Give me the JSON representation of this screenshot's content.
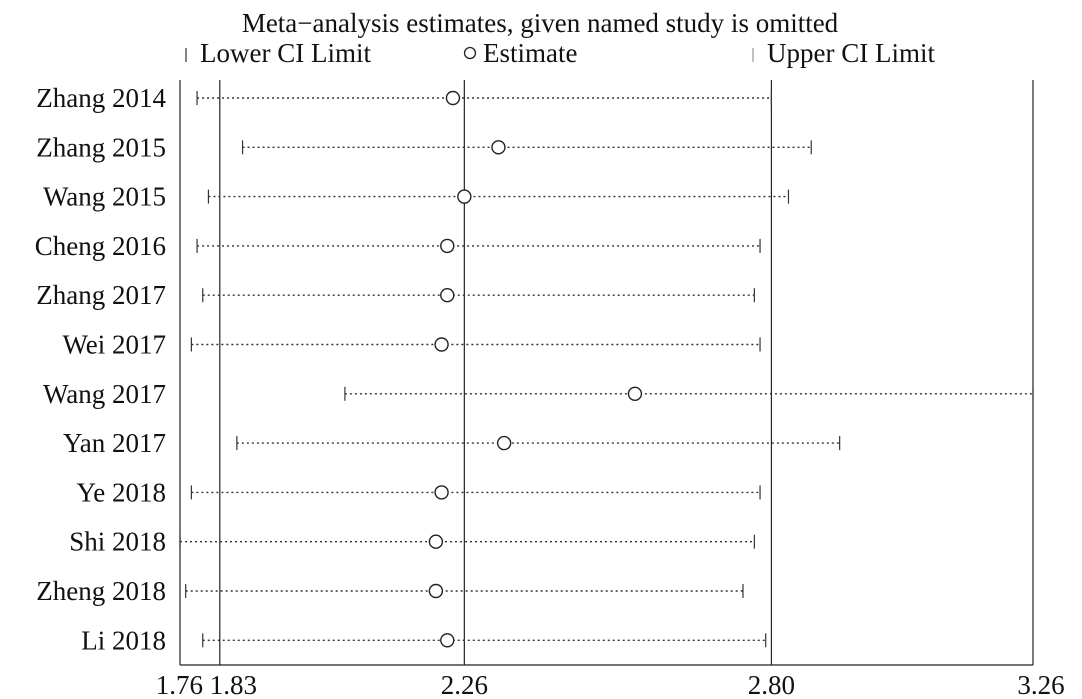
{
  "chart_data": {
    "type": "forest",
    "title": "Meta−analysis estimates, given named study is omitted",
    "legend": {
      "lower": "Lower CI Limit",
      "estimate": "Estimate",
      "upper": "Upper CI  Limit"
    },
    "xlim": [
      1.76,
      3.26
    ],
    "x_ticks": [
      1.76,
      1.83,
      2.26,
      2.8,
      3.26
    ],
    "x_tick_labels": [
      "1.76",
      "1.83",
      "2.26",
      "2.80",
      "3.26"
    ],
    "reference_lines": [
      1.83,
      2.26,
      2.8
    ],
    "studies": [
      {
        "name": "Zhang 2014",
        "lower": 1.79,
        "estimate": 2.24,
        "upper": 2.8
      },
      {
        "name": "Zhang 2015",
        "lower": 1.87,
        "estimate": 2.32,
        "upper": 2.87
      },
      {
        "name": "Wang 2015",
        "lower": 1.81,
        "estimate": 2.26,
        "upper": 2.83
      },
      {
        "name": "Cheng 2016",
        "lower": 1.79,
        "estimate": 2.23,
        "upper": 2.78
      },
      {
        "name": "Zhang 2017",
        "lower": 1.8,
        "estimate": 2.23,
        "upper": 2.77
      },
      {
        "name": "Wei 2017",
        "lower": 1.78,
        "estimate": 2.22,
        "upper": 2.78
      },
      {
        "name": "Wang 2017",
        "lower": 2.05,
        "estimate": 2.56,
        "upper": 3.26
      },
      {
        "name": "Yan 2017",
        "lower": 1.86,
        "estimate": 2.33,
        "upper": 2.92
      },
      {
        "name": "Ye 2018",
        "lower": 1.78,
        "estimate": 2.22,
        "upper": 2.78
      },
      {
        "name": "Shi 2018",
        "lower": 1.76,
        "estimate": 2.21,
        "upper": 2.77
      },
      {
        "name": "Zheng 2018",
        "lower": 1.77,
        "estimate": 2.21,
        "upper": 2.75
      },
      {
        "name": "Li 2018",
        "lower": 1.8,
        "estimate": 2.23,
        "upper": 2.79
      }
    ]
  }
}
